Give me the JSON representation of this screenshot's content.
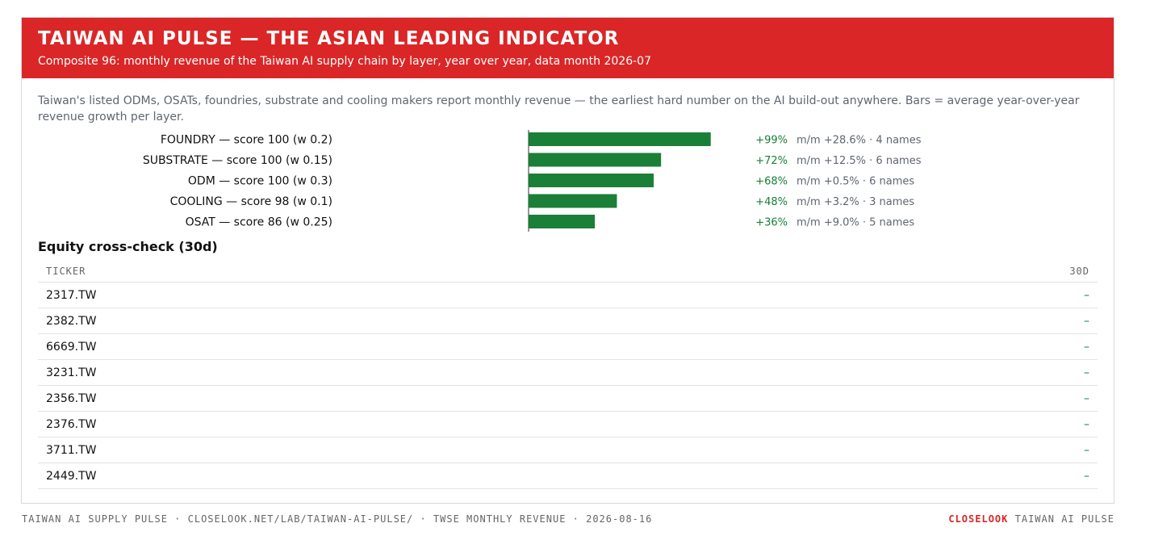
{
  "header": {
    "title": "TAIWAN AI PULSE — THE ASIAN LEADING INDICATOR",
    "subtitle": "Composite 96: monthly revenue of the Taiwan AI supply chain by layer, year over year, data month 2026-07"
  },
  "intro": "Taiwan's listed ODMs, OSATs, foundries, substrate and cooling makers report monthly revenue — the earliest hard number on the AI build-out anywhere. Bars = average year-over-year revenue growth per layer.",
  "colors": {
    "banner": "#da2627",
    "bar": "#1a7f37",
    "positive": "#1a7f37",
    "muted": "#5f6670"
  },
  "chart_data": {
    "type": "bar",
    "orientation": "horizontal",
    "categories": [
      "FOUNDRY — score 100 (w 0.2)",
      "SUBSTRATE — score 100 (w 0.15)",
      "ODM — score 100 (w 0.3)",
      "COOLING — score 98 (w 0.1)",
      "OSAT — score 86 (w 0.25)"
    ],
    "values": [
      99,
      72,
      68,
      48,
      36
    ],
    "value_labels": [
      "+99%",
      "+72%",
      "+68%",
      "+48%",
      "+36%"
    ],
    "notes": [
      "m/m +28.6% · 4 names",
      "m/m +12.5% · 6 names",
      "m/m +0.5% · 6 names",
      "m/m +3.2% · 3 names",
      "m/m +9.0% · 5 names"
    ],
    "xlim": [
      0,
      100
    ],
    "grid": false
  },
  "equity": {
    "title": "Equity cross-check (30d)",
    "columns": [
      "TICKER",
      "30D"
    ],
    "rows": [
      {
        "ticker": "2317.TW",
        "change": "–"
      },
      {
        "ticker": "2382.TW",
        "change": "–"
      },
      {
        "ticker": "6669.TW",
        "change": "–"
      },
      {
        "ticker": "3231.TW",
        "change": "–"
      },
      {
        "ticker": "2356.TW",
        "change": "–"
      },
      {
        "ticker": "2376.TW",
        "change": "–"
      },
      {
        "ticker": "3711.TW",
        "change": "–"
      },
      {
        "ticker": "2449.TW",
        "change": "–"
      }
    ]
  },
  "footer": {
    "left": "TAIWAN AI SUPPLY PULSE · CLOSELOOK.NET/LAB/TAIWAN-AI-PULSE/ · TWSE MONTHLY REVENUE · 2026-08-16",
    "brand": "CLOSELOOK",
    "right": "TAIWAN AI PULSE"
  }
}
